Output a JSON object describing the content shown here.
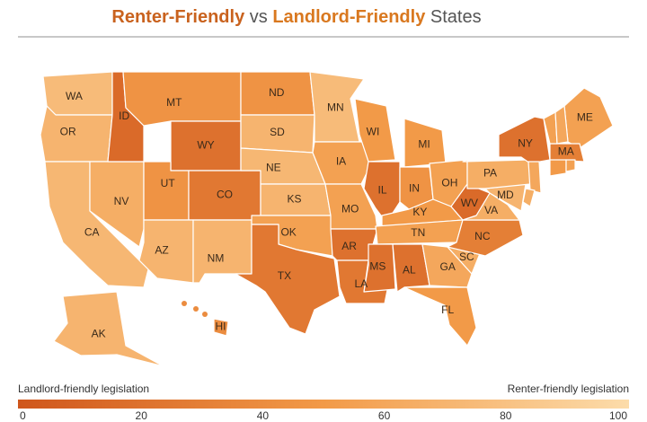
{
  "chart_data": {
    "type": "choropleth",
    "title": [
      "Renter-Friendly",
      " vs ",
      "Landlord-Friendly",
      " States"
    ],
    "title_colors": [
      "#c9621e",
      "#555555",
      "#d9781f",
      "#555555"
    ],
    "categories": [
      "WA",
      "OR",
      "CA",
      "NV",
      "ID",
      "MT",
      "WY",
      "UT",
      "CO",
      "AZ",
      "NM",
      "ND",
      "SD",
      "NE",
      "KS",
      "OK",
      "TX",
      "MN",
      "IA",
      "MO",
      "AR",
      "LA",
      "WI",
      "IL",
      "MI",
      "IN",
      "OH",
      "KY",
      "TN",
      "MS",
      "AL",
      "GA",
      "FL",
      "SC",
      "NC",
      "VA",
      "WV",
      "MD",
      "PA",
      "NY",
      "ME",
      "MA",
      "AK",
      "HI",
      null,
      null,
      null,
      null,
      null,
      null
    ],
    "values": [
      75,
      70,
      72,
      65,
      15,
      45,
      20,
      45,
      25,
      70,
      70,
      45,
      70,
      72,
      70,
      55,
      25,
      75,
      55,
      55,
      20,
      25,
      50,
      20,
      50,
      45,
      55,
      50,
      55,
      20,
      20,
      60,
      50,
      65,
      30,
      65,
      15,
      70,
      65,
      20,
      55,
      30,
      70,
      40,
      55,
      60,
      50,
      55,
      60,
      65
    ],
    "colors": [
      "#cf561c",
      "#f29a48",
      "#fcdcaa"
    ],
    "legend_left": "Landlord-friendly legislation",
    "legend_right": "Renter-friendly legislation",
    "xlim": [
      0,
      100
    ],
    "xticks": [
      0,
      20,
      40,
      60,
      80,
      100
    ]
  }
}
